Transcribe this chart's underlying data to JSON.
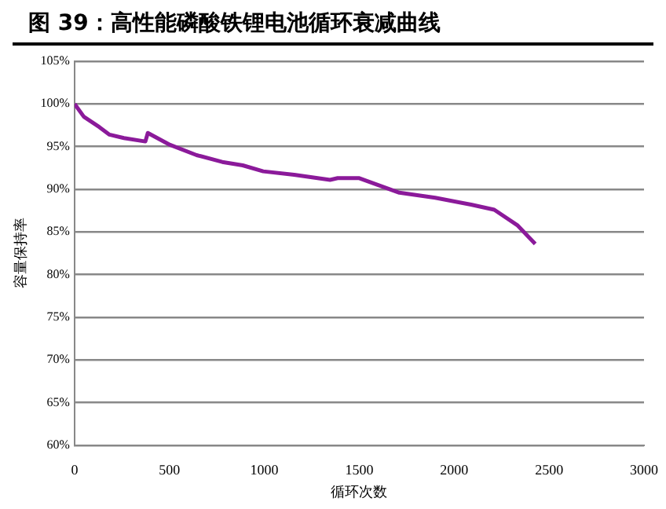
{
  "chart_data": {
    "type": "line",
    "title": "图 39：高性能磷酸铁锂电池循环衰减曲线",
    "xlabel": "循环次数",
    "ylabel": "容量保持率",
    "x": [
      0,
      49,
      130,
      184,
      260,
      373,
      386,
      503,
      643,
      778,
      886,
      994,
      1157,
      1346,
      1386,
      1500,
      1711,
      1900,
      2089,
      2211,
      2332,
      2427
    ],
    "series": [
      {
        "color": "#8b1a9a",
        "values": [
          100,
          98.5,
          97.3,
          96.4,
          96.0,
          95.6,
          96.6,
          95.2,
          94.0,
          93.2,
          92.8,
          92.1,
          91.7,
          91.1,
          91.3,
          91.3,
          89.6,
          89.0,
          88.2,
          87.6,
          85.8,
          83.6
        ]
      }
    ],
    "xlim": [
      0,
      3000
    ],
    "xticks": [
      0,
      500,
      1000,
      1500,
      2000,
      2500,
      3000
    ],
    "ylim": [
      60,
      105
    ],
    "yticks": [
      {
        "value": 60,
        "label": "60%"
      },
      {
        "value": 65,
        "label": "65%"
      },
      {
        "value": 70,
        "label": "70%"
      },
      {
        "value": 75,
        "label": "75%"
      },
      {
        "value": 80,
        "label": "80%"
      },
      {
        "value": 85,
        "label": "85%"
      },
      {
        "value": 90,
        "label": "90%"
      },
      {
        "value": 95,
        "label": "95%"
      },
      {
        "value": 100,
        "label": "100%"
      },
      {
        "value": 105,
        "label": "105%"
      }
    ],
    "grid": "y",
    "legend": false,
    "marker": "none",
    "line_style": "solid"
  }
}
